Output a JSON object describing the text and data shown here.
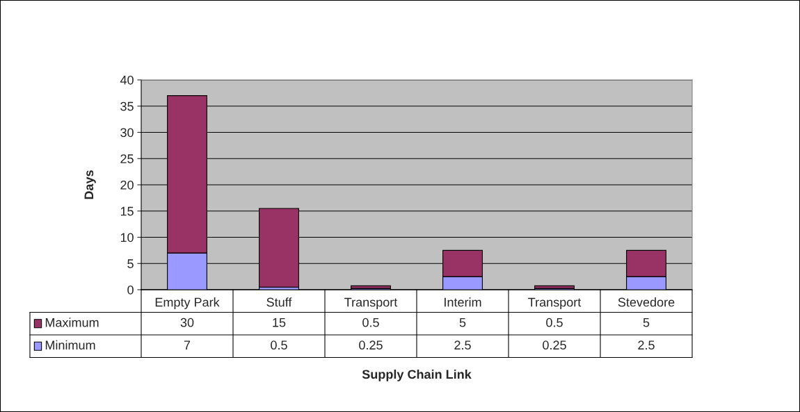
{
  "chart_data": {
    "type": "bar",
    "stacked": true,
    "xlabel": "Supply Chain Link",
    "ylabel": "Days",
    "categories": [
      "Empty Park",
      "Stuff",
      "Transport",
      "Interim",
      "Transport",
      "Stevedore"
    ],
    "series": [
      {
        "name": "Minimum",
        "color": "#9999ff",
        "values": [
          7,
          0.5,
          0.25,
          2.5,
          0.25,
          2.5
        ]
      },
      {
        "name": "Maximum",
        "color": "#993366",
        "values": [
          30,
          15,
          0.5,
          5,
          0.5,
          5
        ]
      }
    ],
    "ylim": [
      0,
      40
    ],
    "yticks": [
      0,
      5,
      10,
      15,
      20,
      25,
      30,
      35,
      40
    ],
    "grid": "y",
    "data_labels": true,
    "legend": "bottom left"
  }
}
